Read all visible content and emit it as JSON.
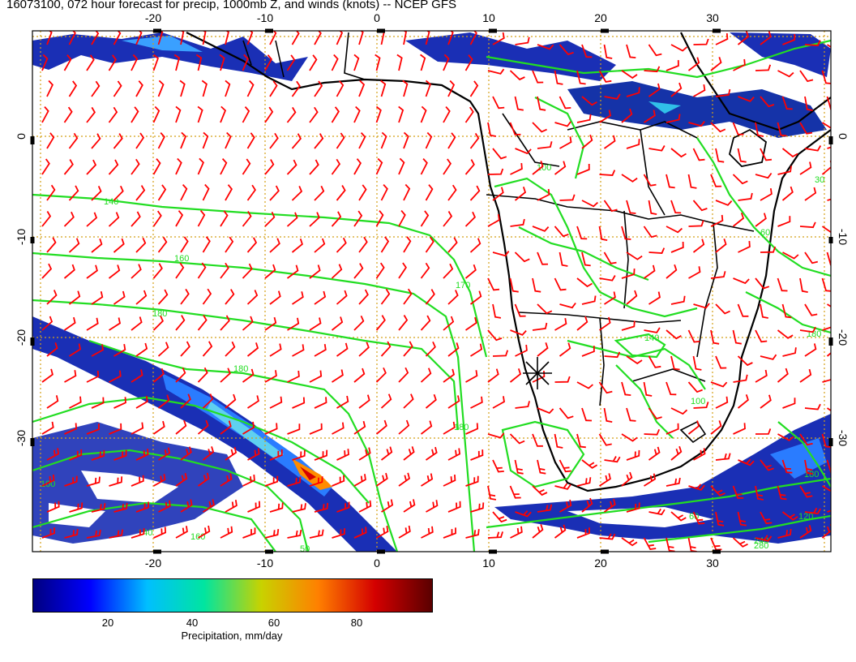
{
  "title": "16073100, 072 hour forecast for precip, 1000mb Z, and winds (knots) -- NCEP GFS",
  "map": {
    "lon_range": [
      -30,
      40
    ],
    "lat_range": [
      -40,
      10
    ],
    "lon_ticks": [
      "-20",
      "-10",
      "0",
      "10",
      "20",
      "30"
    ],
    "lat_ticks": [
      "0",
      "-10",
      "-20",
      "-30"
    ],
    "gridline_color": "#d4a017",
    "wind_barb_color": "#ff0000",
    "contour_color": "#22dd22",
    "coastline_color": "#000000",
    "marker": {
      "symbol": "star-cross",
      "lon": 14.5,
      "lat": -22.8
    },
    "contour_labels": [
      "140",
      "160",
      "180",
      "180",
      "180",
      "170",
      "100",
      "140",
      "100",
      "180",
      "120",
      "240",
      "280",
      "180",
      "160",
      "140",
      "100",
      "60",
      "60",
      "50",
      "30"
    ]
  },
  "colorbar": {
    "label": "Precipitation, mm/day",
    "ticks": [
      "20",
      "40",
      "60",
      "80"
    ],
    "colors": [
      "#000080",
      "#0000ff",
      "#00bfff",
      "#00e5a0",
      "#c8d200",
      "#ff8000",
      "#d40000",
      "#5a0000"
    ]
  }
}
